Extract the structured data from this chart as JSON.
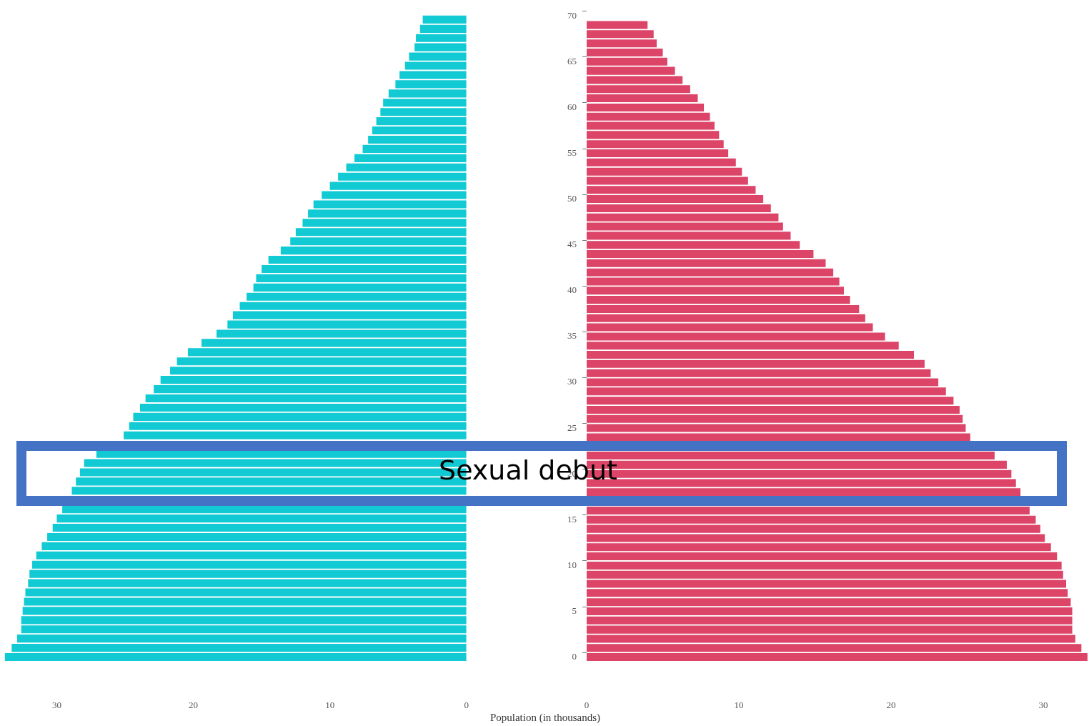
{
  "chart_data": [
    {
      "type": "bar",
      "orientation": "horizontal",
      "tick_labels": "x",
      "categories": [
        "70",
        null,
        null,
        null,
        null,
        "65",
        null,
        null,
        null,
        null,
        "60",
        null,
        null,
        null,
        null,
        "55",
        null,
        null,
        null,
        null,
        "50",
        null,
        null,
        null,
        null,
        "45",
        null,
        null,
        null,
        null,
        "40",
        null,
        null,
        null,
        null,
        "35",
        null,
        null,
        null,
        null,
        "30",
        null,
        null,
        null,
        null,
        "25",
        null,
        null,
        null,
        null,
        "20",
        null,
        null,
        null,
        null,
        "15",
        null,
        null,
        null,
        null,
        "10",
        null,
        null,
        null,
        null,
        "5",
        null,
        null,
        null,
        null,
        "0"
      ],
      "series": [
        {
          "color": "#12cad3",
          "values": [
            null,
            3.2,
            3.4,
            3.7,
            3.8,
            4.2,
            4.5,
            4.9,
            5.2,
            5.7,
            6.1,
            6.3,
            6.6,
            6.9,
            7.2,
            7.6,
            8.2,
            8.8,
            9.4,
            10.0,
            10.6,
            11.2,
            11.6,
            12.0,
            12.5,
            12.9,
            13.6,
            14.5,
            15.0,
            15.4,
            15.6,
            16.1,
            16.6,
            17.1,
            17.5,
            18.3,
            19.4,
            20.4,
            21.2,
            21.7,
            22.4,
            22.9,
            23.5,
            23.9,
            24.4,
            24.7,
            25.1,
            null,
            27.1,
            28.0,
            28.3,
            28.6,
            28.9,
            null,
            29.6,
            30.0,
            30.3,
            30.7,
            31.1,
            31.5,
            31.8,
            32.0,
            32.1,
            32.3,
            32.4,
            32.5,
            32.6,
            32.6,
            32.9,
            33.3,
            33.8
          ]
        }
      ],
      "xlim": [
        34,
        0
      ],
      "xticks": [
        30,
        20,
        10,
        0
      ]
    },
    {
      "type": "bar",
      "orientation": "horizontal",
      "xlabel": "Population (in thousands)",
      "annotations": [
        "Sexual debut"
      ],
      "categories": [
        "70",
        null,
        null,
        null,
        null,
        "65",
        null,
        null,
        null,
        null,
        "60",
        null,
        null,
        null,
        null,
        "55",
        null,
        null,
        null,
        null,
        "50",
        null,
        null,
        null,
        null,
        "45",
        null,
        null,
        null,
        null,
        "40",
        null,
        null,
        null,
        null,
        "35",
        null,
        null,
        null,
        null,
        "30",
        null,
        null,
        null,
        null,
        "25",
        null,
        null,
        null,
        null,
        "20",
        null,
        null,
        null,
        null,
        "15",
        null,
        null,
        null,
        null,
        "10",
        null,
        null,
        null,
        null,
        "5",
        null,
        null,
        null,
        null,
        "0"
      ],
      "series": [
        {
          "color": "#dc4468",
          "values": [
            null,
            4.0,
            4.4,
            4.6,
            5.0,
            5.3,
            5.8,
            6.3,
            6.8,
            7.3,
            7.7,
            8.1,
            8.4,
            8.7,
            9.0,
            9.3,
            9.8,
            10.2,
            10.6,
            11.1,
            11.6,
            12.1,
            12.6,
            12.9,
            13.4,
            14.0,
            14.9,
            15.7,
            16.2,
            16.6,
            16.9,
            17.3,
            17.9,
            18.3,
            18.8,
            19.6,
            20.5,
            21.5,
            22.2,
            22.6,
            23.1,
            23.6,
            24.1,
            24.5,
            24.7,
            24.9,
            25.2,
            null,
            26.8,
            27.6,
            27.9,
            28.2,
            28.5,
            null,
            29.1,
            29.5,
            29.8,
            30.1,
            30.5,
            30.9,
            31.2,
            31.3,
            31.5,
            31.6,
            31.8,
            31.9,
            31.9,
            31.9,
            32.1,
            32.5,
            32.9
          ]
        }
      ],
      "xlim": [
        0,
        33
      ],
      "xticks": [
        0,
        10,
        20,
        30
      ]
    }
  ]
}
